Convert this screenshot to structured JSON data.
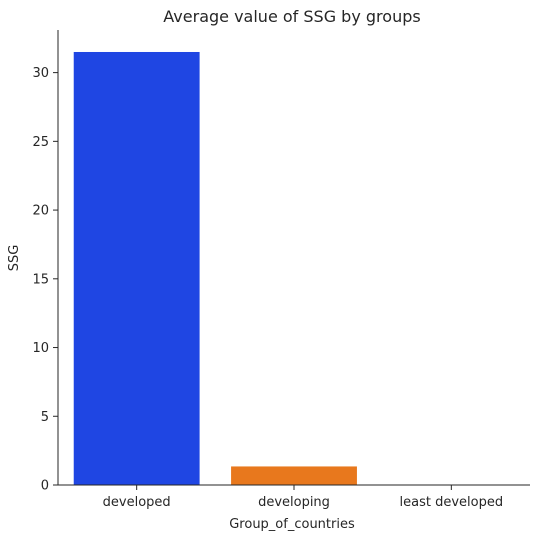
{
  "chart_data": {
    "type": "bar",
    "title": "Average value of SSG by groups",
    "xlabel": "Group_of_countries",
    "ylabel": "SSG",
    "categories": [
      "developed",
      "developing",
      "least developed"
    ],
    "values": [
      31.5,
      1.35,
      0
    ],
    "colors": [
      "#1f46e3",
      "#e8781d",
      "#2ca02c"
    ],
    "ylim": [
      0,
      33.1
    ],
    "yticks": [
      0,
      5,
      10,
      15,
      20,
      25,
      30
    ],
    "grid": false,
    "legend": "none",
    "spines": [
      "left",
      "bottom"
    ]
  }
}
